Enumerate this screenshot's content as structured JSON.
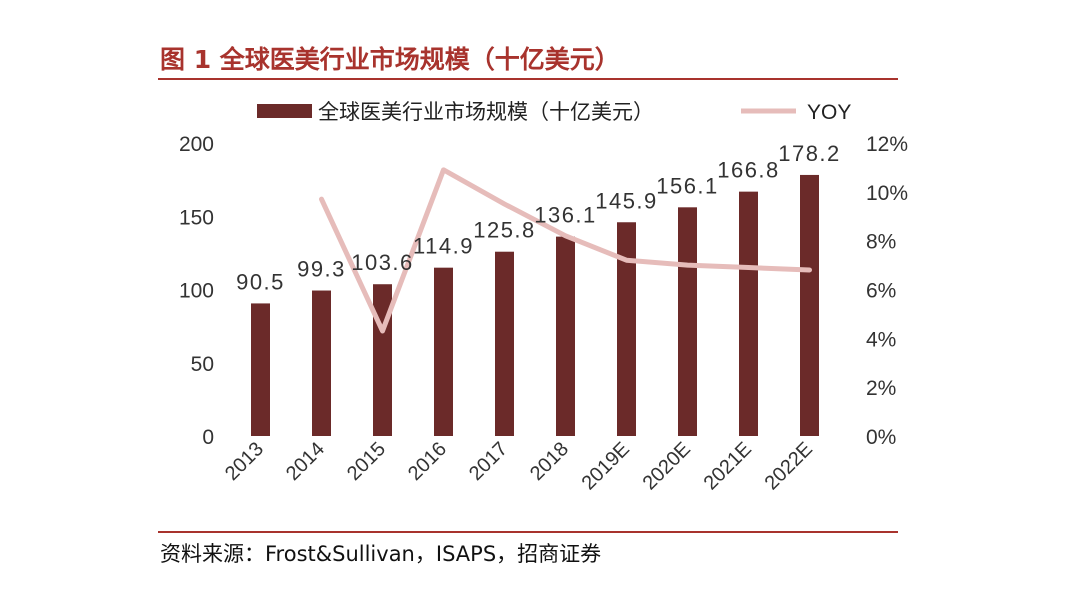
{
  "figure": {
    "title": "图 1 全球医美行业市场规模（十亿美元）",
    "source": "资料来源：Frost&Sullivan，ISAPS，招商证券"
  },
  "colors": {
    "accent": "#a8332d",
    "bar": "#6b2a29",
    "line": "#e6bcba"
  },
  "chart_data": {
    "type": "bar",
    "categories": [
      "2013",
      "2014",
      "2015",
      "2016",
      "2017",
      "2018",
      "2019E",
      "2020E",
      "2021E",
      "2022E"
    ],
    "series": [
      {
        "name": "全球医美行业市场规模（十亿美元）",
        "type": "bar",
        "axis": "left",
        "values": [
          90.5,
          99.3,
          103.6,
          114.9,
          125.8,
          136.1,
          145.9,
          156.1,
          166.8,
          178.2
        ]
      },
      {
        "name": "YOY",
        "type": "line",
        "axis": "right",
        "values": [
          null,
          9.7,
          4.3,
          10.9,
          9.5,
          8.2,
          7.2,
          7.0,
          6.9,
          6.8
        ]
      }
    ],
    "y_left": {
      "ticks": [
        "0",
        "50",
        "100",
        "150",
        "200"
      ],
      "ylim": [
        0,
        200
      ]
    },
    "y_right": {
      "ticks": [
        "0%",
        "2%",
        "4%",
        "6%",
        "8%",
        "10%",
        "12%"
      ],
      "ylim": [
        0,
        12
      ]
    },
    "grid": false,
    "legend": "top"
  }
}
